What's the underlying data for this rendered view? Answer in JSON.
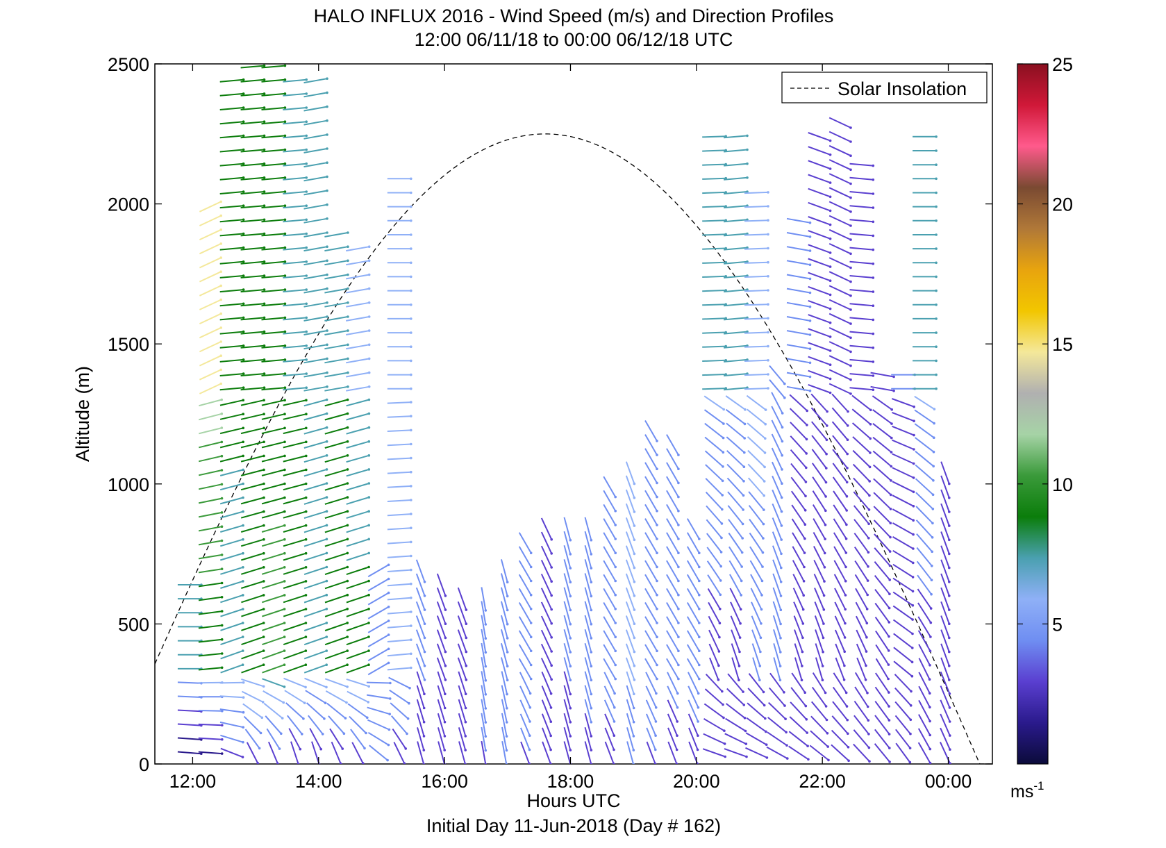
{
  "chart_data": {
    "type": "wind_barb_profile",
    "title_line1": "HALO INFLUX 2016 - Wind Speed (m/s) and Direction Profiles",
    "title_line2": "12:00 06/11/18 to 00:00 06/12/18  UTC",
    "xlabel": "Hours UTC",
    "xlabel2": "Initial Day 11-Jun-2018 (Day # 162)",
    "ylabel": "Altitude (m)",
    "x_ticks": [
      "12:00",
      "14:00",
      "16:00",
      "18:00",
      "20:00",
      "22:00",
      "00:00"
    ],
    "x_tick_hours": [
      12,
      14,
      16,
      18,
      20,
      22,
      24
    ],
    "xlim_hours": [
      11.4,
      24.7
    ],
    "y_ticks": [
      0,
      500,
      1000,
      1500,
      2000,
      2500
    ],
    "ylim": [
      0,
      2500
    ],
    "legend": {
      "label": "Solar Insolation",
      "placement": "top-right"
    },
    "colorbar": {
      "ticks": [
        5,
        10,
        15,
        20,
        25
      ],
      "min": 0,
      "max": 25,
      "unit_base": "ms",
      "unit_exp": "-1"
    },
    "solar_insolation_curve": {
      "peak_hour": 17.6,
      "peak_altitude": 2250,
      "half_width_hours": 6.9
    },
    "colors": {
      "solar_line": "#000000",
      "colormap": [
        "#0b0b3a",
        "#2a1a8c",
        "#5a3fd0",
        "#6f8ef2",
        "#8fb0f7",
        "#4aa0b0",
        "#0b7d0b",
        "#3a9a3a",
        "#a6d3a6",
        "#b0b0b0",
        "#f4e89a",
        "#f2c600",
        "#e8a40e",
        "#b07838",
        "#7a4a32",
        "#ff5a8c",
        "#d01838",
        "#8a1020"
      ]
    },
    "profile_hours": [
      11.95,
      12.28,
      12.62,
      12.95,
      13.28,
      13.62,
      13.95,
      14.28,
      14.62,
      14.95,
      15.28,
      15.62,
      15.95,
      16.28,
      16.62,
      16.95,
      17.28,
      17.62,
      17.95,
      18.28,
      18.62,
      18.95,
      19.28,
      19.62,
      19.95,
      20.28,
      20.62,
      20.95,
      21.28,
      21.62,
      21.95,
      22.28,
      22.62,
      22.95,
      23.28,
      23.62,
      23.95
    ],
    "profiles": [
      {
        "hour": 11.95,
        "top": 650,
        "lower_speed": 0.5,
        "lower_dir": 95,
        "mid_speed": 8,
        "mid_dir": 90,
        "upper_speed": 8,
        "upper_dir": 90
      },
      {
        "hour": 12.28,
        "top": 2000,
        "lower_speed": 1.5,
        "lower_dir": 95,
        "mid_speed": 8.5,
        "mid_dir": 85,
        "upper_speed": 14.5,
        "upper_dir": 65
      },
      {
        "hour": 12.62,
        "top": 2450,
        "lower_speed": 3,
        "lower_dir": 115,
        "mid_speed": 7.5,
        "mid_dir": 70,
        "upper_speed": 9,
        "upper_dir": 85
      },
      {
        "hour": 12.95,
        "top": 2490,
        "lower_speed": 3,
        "lower_dir": 160,
        "mid_speed": 9,
        "mid_dir": 70,
        "upper_speed": 8.5,
        "upper_dir": 85
      },
      {
        "hour": 13.28,
        "top": 2490,
        "lower_speed": 2.5,
        "lower_dir": 165,
        "mid_speed": 10,
        "mid_dir": 70,
        "upper_speed": 8.5,
        "upper_dir": 85
      },
      {
        "hour": 13.62,
        "top": 2460,
        "lower_speed": 2.5,
        "lower_dir": 170,
        "mid_speed": 9,
        "mid_dir": 70,
        "upper_speed": 8,
        "upper_dir": 85
      },
      {
        "hour": 13.95,
        "top": 2480,
        "lower_speed": 2,
        "lower_dir": 170,
        "mid_speed": 8,
        "mid_dir": 70,
        "upper_speed": 7.5,
        "upper_dir": 80
      },
      {
        "hour": 14.28,
        "top": 1900,
        "lower_speed": 2.5,
        "lower_dir": 165,
        "mid_speed": 8.5,
        "mid_dir": 70,
        "upper_speed": 8,
        "upper_dir": 80
      },
      {
        "hour": 14.62,
        "top": 1850,
        "lower_speed": 3,
        "lower_dir": 160,
        "mid_speed": 8.5,
        "mid_dir": 70,
        "upper_speed": 6.5,
        "upper_dir": 80
      },
      {
        "hour": 14.95,
        "top": 700,
        "lower_speed": 4,
        "lower_dir": 135,
        "mid_speed": 5,
        "mid_dir": 60,
        "upper_speed": 5,
        "upper_dir": 60
      },
      {
        "hour": 15.28,
        "top": 2100,
        "lower_speed": 3,
        "lower_dir": 160,
        "mid_speed": 6,
        "mid_dir": 85,
        "upper_speed": 5.5,
        "upper_dir": 90
      },
      {
        "hour": 15.62,
        "top": 700,
        "lower_speed": 2.5,
        "lower_dir": 165,
        "mid_speed": 4,
        "mid_dir": 160,
        "upper_speed": 4,
        "upper_dir": 160
      },
      {
        "hour": 15.95,
        "top": 650,
        "lower_speed": 2.5,
        "lower_dir": 165,
        "mid_speed": 3,
        "mid_dir": 160,
        "upper_speed": 3,
        "upper_dir": 160
      },
      {
        "hour": 16.28,
        "top": 600,
        "lower_speed": 2.5,
        "lower_dir": 165,
        "mid_speed": 3,
        "mid_dir": 160,
        "upper_speed": 3,
        "upper_dir": 160
      },
      {
        "hour": 16.62,
        "top": 620,
        "lower_speed": 3.5,
        "lower_dir": 170,
        "mid_speed": 4.5,
        "mid_dir": 170,
        "upper_speed": 4.5,
        "upper_dir": 170
      },
      {
        "hour": 16.95,
        "top": 700,
        "lower_speed": 4.5,
        "lower_dir": 170,
        "mid_speed": 5,
        "mid_dir": 165,
        "upper_speed": 5,
        "upper_dir": 165
      },
      {
        "hour": 17.28,
        "top": 800,
        "lower_speed": 3.5,
        "lower_dir": 160,
        "mid_speed": 4.5,
        "mid_dir": 150,
        "upper_speed": 4.5,
        "upper_dir": 150
      },
      {
        "hour": 17.62,
        "top": 850,
        "lower_speed": 3,
        "lower_dir": 160,
        "mid_speed": 3.5,
        "mid_dir": 155,
        "upper_speed": 3.5,
        "upper_dir": 155
      },
      {
        "hour": 17.95,
        "top": 850,
        "lower_speed": 3,
        "lower_dir": 165,
        "mid_speed": 4,
        "mid_dir": 165,
        "upper_speed": 4,
        "upper_dir": 165
      },
      {
        "hour": 18.28,
        "top": 870,
        "lower_speed": 3.5,
        "lower_dir": 165,
        "mid_speed": 4,
        "mid_dir": 165,
        "upper_speed": 4,
        "upper_dir": 165
      },
      {
        "hour": 18.62,
        "top": 1000,
        "lower_speed": 3.5,
        "lower_dir": 160,
        "mid_speed": 4,
        "mid_dir": 150,
        "upper_speed": 4,
        "upper_dir": 150
      },
      {
        "hour": 18.95,
        "top": 1050,
        "lower_speed": 4,
        "lower_dir": 165,
        "mid_speed": 6,
        "mid_dir": 160,
        "upper_speed": 6,
        "upper_dir": 160
      },
      {
        "hour": 19.28,
        "top": 1200,
        "lower_speed": 3.5,
        "lower_dir": 160,
        "mid_speed": 4.5,
        "mid_dir": 150,
        "upper_speed": 4.5,
        "upper_dir": 150
      },
      {
        "hour": 19.62,
        "top": 1150,
        "lower_speed": 3,
        "lower_dir": 160,
        "mid_speed": 4.5,
        "mid_dir": 150,
        "upper_speed": 4.5,
        "upper_dir": 150
      },
      {
        "hour": 19.95,
        "top": 850,
        "lower_speed": 3,
        "lower_dir": 160,
        "mid_speed": 5,
        "mid_dir": 150,
        "upper_speed": 5,
        "upper_dir": 150
      },
      {
        "hour": 20.28,
        "top": 2280,
        "lower_speed": 2.5,
        "lower_dir": 105,
        "mid_speed": 3,
        "mid_dir": 160,
        "upper_speed": 7.5,
        "upper_dir": 88
      },
      {
        "hour": 20.62,
        "top": 2250,
        "lower_speed": 2.5,
        "lower_dir": 105,
        "mid_speed": 3,
        "mid_dir": 165,
        "upper_speed": 7.5,
        "upper_dir": 85
      },
      {
        "hour": 20.95,
        "top": 2050,
        "lower_speed": 2.5,
        "lower_dir": 110,
        "mid_speed": 4.5,
        "mid_dir": 165,
        "upper_speed": 6.5,
        "upper_dir": 88
      },
      {
        "hour": 21.28,
        "top": 1400,
        "lower_speed": 2.5,
        "lower_dir": 115,
        "mid_speed": 4,
        "mid_dir": 165,
        "upper_speed": 4,
        "upper_dir": 140
      },
      {
        "hour": 21.62,
        "top": 1950,
        "lower_speed": 2.5,
        "lower_dir": 120,
        "mid_speed": 3,
        "mid_dir": 165,
        "upper_speed": 4,
        "upper_dir": 100
      },
      {
        "hour": 21.95,
        "top": 2250,
        "lower_speed": 2.5,
        "lower_dir": 125,
        "mid_speed": 3,
        "mid_dir": 165,
        "upper_speed": 3,
        "upper_dir": 110
      },
      {
        "hour": 22.28,
        "top": 2320,
        "lower_speed": 2.5,
        "lower_dir": 130,
        "mid_speed": 3.5,
        "mid_dir": 160,
        "upper_speed": 2.5,
        "upper_dir": 115
      },
      {
        "hour": 22.62,
        "top": 2180,
        "lower_speed": 2.5,
        "lower_dir": 135,
        "mid_speed": 3.5,
        "mid_dir": 160,
        "upper_speed": 3.5,
        "upper_dir": 95
      },
      {
        "hour": 22.95,
        "top": 1420,
        "lower_speed": 3,
        "lower_dir": 140,
        "mid_speed": 3,
        "mid_dir": 150,
        "upper_speed": 3.5,
        "upper_dir": 100
      },
      {
        "hour": 23.28,
        "top": 1410,
        "lower_speed": 3,
        "lower_dir": 145,
        "mid_speed": 3,
        "mid_dir": 130,
        "upper_speed": 4,
        "upper_dir": 90
      },
      {
        "hour": 23.62,
        "top": 2280,
        "lower_speed": 3,
        "lower_dir": 150,
        "mid_speed": 3,
        "mid_dir": 155,
        "upper_speed": 7.5,
        "upper_dir": 90
      },
      {
        "hour": 23.95,
        "top": 1050,
        "lower_speed": 2.5,
        "lower_dir": 155,
        "mid_speed": 2.5,
        "mid_dir": 160,
        "upper_speed": 2.5,
        "upper_dir": 160
      }
    ]
  }
}
